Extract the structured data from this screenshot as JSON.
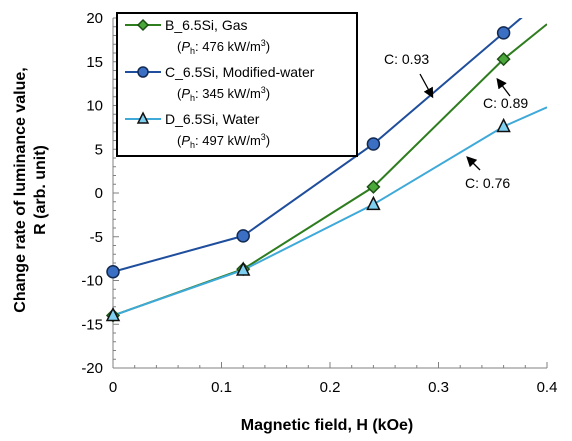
{
  "chart_data": {
    "type": "line",
    "title": "",
    "xlabel": "Magnetic field, H (kOe)",
    "ylabel_line1": "Change rate of luminance value,",
    "ylabel_line2": "R (arb. unit)",
    "xlim": [
      0,
      0.4
    ],
    "ylim": [
      -20,
      20
    ],
    "x_ticks": [
      "0",
      "0.1",
      "0.2",
      "0.3",
      "0.4"
    ],
    "y_ticks": [
      "-20",
      "-15",
      "-10",
      "-5",
      "0",
      "5",
      "10",
      "15",
      "20"
    ],
    "grid": "none",
    "legend_position": "top-left",
    "series": [
      {
        "name": "B_6.5Si, Gas",
        "detail_label": "P",
        "detail_sub": "h",
        "detail_value": ": 476 kW/m",
        "detail_sup": "3",
        "color": "#2e7d1f",
        "marker": "diamond",
        "marker_fill": "#4aa83a",
        "x": [
          0,
          0.12,
          0.24,
          0.36,
          0.4
        ],
        "values": [
          -14.0,
          -8.7,
          0.7,
          15.3,
          19.3
        ]
      },
      {
        "name": "C_6.5Si, Modified-water",
        "detail_label": "P",
        "detail_sub": "h",
        "detail_value": ": 345 kW/m",
        "detail_sup": "3",
        "color": "#1f4e9c",
        "marker": "circle",
        "marker_fill": "#3a6fc4",
        "x": [
          0,
          0.12,
          0.24,
          0.36,
          0.4
        ],
        "values": [
          -9.0,
          -4.9,
          5.6,
          18.3,
          22.5
        ]
      },
      {
        "name": "D_6.5Si, Water",
        "detail_label": "P",
        "detail_sub": "h",
        "detail_value": ": 497 kW/m",
        "detail_sup": "3",
        "color": "#3fa9d8",
        "marker": "triangle",
        "marker_fill": "#7fd0f0",
        "x": [
          0,
          0.12,
          0.24,
          0.36,
          0.4
        ],
        "values": [
          -14.0,
          -8.8,
          -1.3,
          7.6,
          9.8
        ]
      }
    ],
    "annotations": [
      {
        "text": "C: 0.93"
      },
      {
        "text": "C: 0.89"
      },
      {
        "text": "C: 0.76"
      }
    ]
  }
}
